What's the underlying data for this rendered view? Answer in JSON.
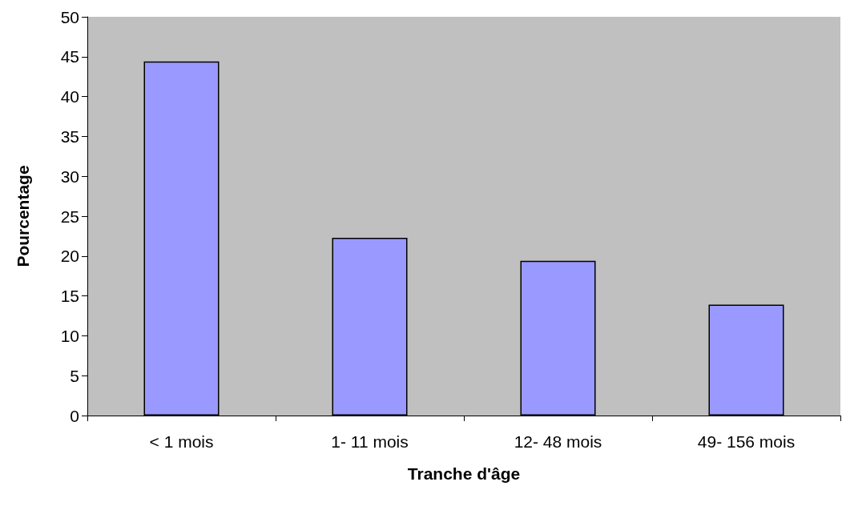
{
  "chart_data": {
    "type": "bar",
    "xlabel": "Tranche d'âge",
    "ylabel": "Pourcentage",
    "categories": [
      "< 1 mois",
      "1- 11 mois",
      "12- 48 mois",
      "49- 156 mois"
    ],
    "values": [
      44.4,
      22.3,
      19.4,
      13.9
    ],
    "color": "#9999ff",
    "ylim": [
      0,
      50
    ],
    "yticks": [
      0,
      5,
      10,
      15,
      20,
      25,
      30,
      35,
      40,
      45,
      50
    ],
    "grid": false
  }
}
